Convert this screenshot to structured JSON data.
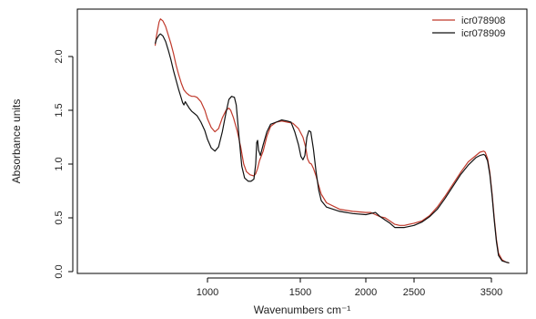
{
  "chart_data": {
    "type": "line",
    "xlabel": "Wavenumbers cm⁻¹",
    "ylabel": "Absorbance units",
    "xlim": [
      5,
      4000
    ],
    "ylim": [
      0,
      2.5
    ],
    "x_ticks": [
      {
        "value": 1000,
        "label": "1000"
      },
      {
        "value": 1500,
        "label": "1500"
      },
      {
        "value": 2000,
        "label": "2000"
      },
      {
        "value": 2500,
        "label": "2500"
      },
      {
        "value": 3500,
        "label": "3500"
      }
    ],
    "y_ticks": [
      {
        "value": 0.0,
        "label": "0.0"
      },
      {
        "value": 0.5,
        "label": "0.5"
      },
      {
        "value": 1.0,
        "label": "1.0"
      },
      {
        "value": 1.5,
        "label": "1.5"
      },
      {
        "value": 2.0,
        "label": "2.0"
      }
    ],
    "legend": {
      "position": "top-right"
    },
    "series": [
      {
        "name": "icr078908",
        "color": "#c0392b",
        "points": [
          [
            600,
            2.1
          ],
          [
            610,
            2.19
          ],
          [
            630,
            2.32
          ],
          [
            640,
            2.35
          ],
          [
            660,
            2.33
          ],
          [
            680,
            2.28
          ],
          [
            700,
            2.2
          ],
          [
            720,
            2.12
          ],
          [
            740,
            2.03
          ],
          [
            760,
            1.92
          ],
          [
            780,
            1.83
          ],
          [
            800,
            1.75
          ],
          [
            820,
            1.69
          ],
          [
            840,
            1.66
          ],
          [
            860,
            1.64
          ],
          [
            880,
            1.63
          ],
          [
            900,
            1.63
          ],
          [
            920,
            1.62
          ],
          [
            950,
            1.58
          ],
          [
            980,
            1.5
          ],
          [
            1000,
            1.42
          ],
          [
            1020,
            1.34
          ],
          [
            1040,
            1.3
          ],
          [
            1060,
            1.33
          ],
          [
            1080,
            1.43
          ],
          [
            1100,
            1.5
          ],
          [
            1115,
            1.52
          ],
          [
            1125,
            1.5
          ],
          [
            1140,
            1.43
          ],
          [
            1160,
            1.31
          ],
          [
            1180,
            1.15
          ],
          [
            1195,
            1.0
          ],
          [
            1210,
            0.93
          ],
          [
            1230,
            0.9
          ],
          [
            1250,
            0.89
          ],
          [
            1260,
            0.91
          ],
          [
            1270,
            0.96
          ],
          [
            1280,
            1.03
          ],
          [
            1300,
            1.12
          ],
          [
            1320,
            1.26
          ],
          [
            1340,
            1.35
          ],
          [
            1370,
            1.39
          ],
          [
            1400,
            1.4
          ],
          [
            1430,
            1.39
          ],
          [
            1460,
            1.38
          ],
          [
            1490,
            1.33
          ],
          [
            1520,
            1.25
          ],
          [
            1540,
            1.16
          ],
          [
            1555,
            1.05
          ],
          [
            1570,
            1.01
          ],
          [
            1585,
            1.0
          ],
          [
            1600,
            0.96
          ],
          [
            1620,
            0.89
          ],
          [
            1640,
            0.8
          ],
          [
            1660,
            0.72
          ],
          [
            1700,
            0.64
          ],
          [
            1800,
            0.58
          ],
          [
            1900,
            0.56
          ],
          [
            2000,
            0.55
          ],
          [
            2050,
            0.55
          ],
          [
            2100,
            0.53
          ],
          [
            2150,
            0.51
          ],
          [
            2200,
            0.5
          ],
          [
            2250,
            0.47
          ],
          [
            2300,
            0.44
          ],
          [
            2350,
            0.43
          ],
          [
            2400,
            0.43
          ],
          [
            2450,
            0.44
          ],
          [
            2500,
            0.45
          ],
          [
            2600,
            0.47
          ],
          [
            2700,
            0.52
          ],
          [
            2800,
            0.6
          ],
          [
            2900,
            0.7
          ],
          [
            3000,
            0.81
          ],
          [
            3100,
            0.92
          ],
          [
            3200,
            1.02
          ],
          [
            3300,
            1.08
          ],
          [
            3350,
            1.11
          ],
          [
            3400,
            1.12
          ],
          [
            3420,
            1.11
          ],
          [
            3450,
            1.05
          ],
          [
            3480,
            0.92
          ],
          [
            3510,
            0.72
          ],
          [
            3540,
            0.5
          ],
          [
            3570,
            0.3
          ],
          [
            3600,
            0.17
          ],
          [
            3650,
            0.11
          ],
          [
            3700,
            0.09
          ],
          [
            3750,
            0.08
          ]
        ]
      },
      {
        "name": "icr078909",
        "color": "#111111",
        "points": [
          [
            600,
            2.12
          ],
          [
            610,
            2.16
          ],
          [
            630,
            2.2
          ],
          [
            640,
            2.21
          ],
          [
            660,
            2.19
          ],
          [
            680,
            2.14
          ],
          [
            700,
            2.06
          ],
          [
            720,
            1.97
          ],
          [
            740,
            1.87
          ],
          [
            760,
            1.78
          ],
          [
            780,
            1.69
          ],
          [
            800,
            1.61
          ],
          [
            810,
            1.57
          ],
          [
            820,
            1.55
          ],
          [
            830,
            1.58
          ],
          [
            840,
            1.56
          ],
          [
            860,
            1.52
          ],
          [
            880,
            1.49
          ],
          [
            900,
            1.47
          ],
          [
            920,
            1.45
          ],
          [
            950,
            1.39
          ],
          [
            980,
            1.31
          ],
          [
            1000,
            1.23
          ],
          [
            1020,
            1.15
          ],
          [
            1040,
            1.12
          ],
          [
            1060,
            1.16
          ],
          [
            1080,
            1.3
          ],
          [
            1100,
            1.48
          ],
          [
            1115,
            1.6
          ],
          [
            1130,
            1.63
          ],
          [
            1145,
            1.62
          ],
          [
            1155,
            1.55
          ],
          [
            1170,
            1.25
          ],
          [
            1185,
            0.98
          ],
          [
            1200,
            0.87
          ],
          [
            1220,
            0.84
          ],
          [
            1235,
            0.84
          ],
          [
            1250,
            0.86
          ],
          [
            1260,
            1.0
          ],
          [
            1265,
            1.2
          ],
          [
            1270,
            1.22
          ],
          [
            1275,
            1.13
          ],
          [
            1285,
            1.08
          ],
          [
            1300,
            1.18
          ],
          [
            1320,
            1.3
          ],
          [
            1340,
            1.37
          ],
          [
            1370,
            1.39
          ],
          [
            1400,
            1.41
          ],
          [
            1430,
            1.4
          ],
          [
            1450,
            1.39
          ],
          [
            1470,
            1.3
          ],
          [
            1490,
            1.18
          ],
          [
            1505,
            1.07
          ],
          [
            1520,
            1.04
          ],
          [
            1535,
            1.08
          ],
          [
            1550,
            1.25
          ],
          [
            1565,
            1.31
          ],
          [
            1580,
            1.3
          ],
          [
            1600,
            1.14
          ],
          [
            1620,
            0.93
          ],
          [
            1640,
            0.76
          ],
          [
            1660,
            0.66
          ],
          [
            1700,
            0.6
          ],
          [
            1800,
            0.56
          ],
          [
            1900,
            0.54
          ],
          [
            2000,
            0.53
          ],
          [
            2050,
            0.54
          ],
          [
            2100,
            0.55
          ],
          [
            2150,
            0.51
          ],
          [
            2200,
            0.48
          ],
          [
            2250,
            0.45
          ],
          [
            2300,
            0.41
          ],
          [
            2350,
            0.41
          ],
          [
            2400,
            0.41
          ],
          [
            2450,
            0.42
          ],
          [
            2500,
            0.43
          ],
          [
            2600,
            0.46
          ],
          [
            2700,
            0.51
          ],
          [
            2800,
            0.58
          ],
          [
            2900,
            0.68
          ],
          [
            3000,
            0.79
          ],
          [
            3100,
            0.9
          ],
          [
            3200,
            0.99
          ],
          [
            3300,
            1.06
          ],
          [
            3350,
            1.08
          ],
          [
            3400,
            1.09
          ],
          [
            3420,
            1.08
          ],
          [
            3450,
            1.03
          ],
          [
            3480,
            0.9
          ],
          [
            3510,
            0.7
          ],
          [
            3540,
            0.48
          ],
          [
            3570,
            0.28
          ],
          [
            3600,
            0.15
          ],
          [
            3650,
            0.1
          ],
          [
            3700,
            0.09
          ],
          [
            3750,
            0.08
          ]
        ]
      }
    ]
  }
}
